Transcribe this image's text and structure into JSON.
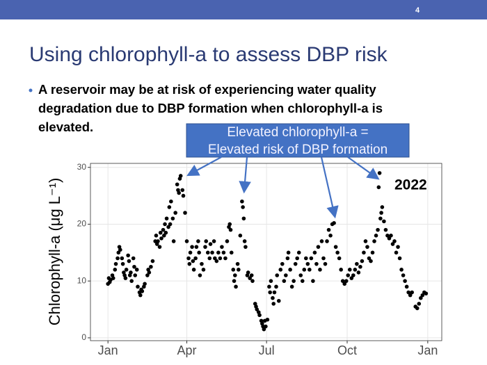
{
  "page_number": "4",
  "title": "Using chlorophyll-a to assess DBP risk",
  "bullet_lines": [
    "A reservoir may be at risk of experiencing water quality",
    "degradation due to DBP formation when chlorophyll-a is",
    "elevated."
  ],
  "callout_lines": [
    "Elevated chlorophyll-a =",
    "Elevated risk of DBP formation"
  ],
  "chart_data": {
    "type": "scatter",
    "y_label": "Chlorophyll-a (μg L⁻¹)",
    "annotation": "2022",
    "color": "#000000",
    "grid": true,
    "xlim": [
      -19,
      382
    ],
    "ylim": [
      -0.5,
      30.7
    ],
    "xticks": [
      {
        "value": 1,
        "label": "Jan"
      },
      {
        "value": 91,
        "label": "Apr"
      },
      {
        "value": 182,
        "label": "Jul"
      },
      {
        "value": 274,
        "label": "Oct"
      },
      {
        "value": 366,
        "label": "Jan"
      }
    ],
    "yticks": [
      0,
      10,
      20,
      30
    ],
    "x": [
      1,
      2,
      3,
      4,
      6,
      7,
      9,
      10,
      12,
      13,
      14,
      15,
      17,
      18,
      19,
      20,
      21,
      22,
      24,
      25,
      26,
      27,
      28,
      30,
      31,
      32,
      34,
      35,
      37,
      38,
      39,
      40,
      42,
      43,
      46,
      47,
      48,
      50,
      52,
      55,
      56,
      57,
      58,
      60,
      61,
      62,
      64,
      65,
      66,
      67,
      68,
      70,
      71,
      72,
      73,
      75,
      76,
      78,
      80,
      81,
      82,
      83,
      84,
      86,
      87,
      89,
      91,
      93,
      94,
      95,
      97,
      98,
      99,
      101,
      102,
      104,
      105,
      106,
      108,
      110,
      112,
      113,
      115,
      117,
      118,
      120,
      122,
      123,
      125,
      127,
      129,
      131,
      133,
      135,
      137,
      139,
      140,
      141,
      142,
      144,
      145,
      146,
      147,
      149,
      150,
      152,
      154,
      155,
      156,
      157,
      158,
      160,
      161,
      163,
      165,
      166,
      169,
      170,
      171,
      173,
      174,
      176,
      177,
      178,
      179,
      180,
      181,
      183,
      185,
      186,
      187,
      189,
      190,
      191,
      193,
      194,
      196,
      198,
      200,
      202,
      204,
      206,
      207,
      209,
      211,
      213,
      215,
      217,
      219,
      221,
      223,
      225,
      227,
      229,
      231,
      233,
      235,
      237,
      239,
      241,
      243,
      245,
      247,
      249,
      251,
      253,
      255,
      257,
      259,
      261,
      263,
      265,
      267,
      269,
      271,
      273,
      275,
      277,
      279,
      281,
      283,
      285,
      287,
      289,
      291,
      293,
      295,
      297,
      299,
      301,
      303,
      305,
      307,
      309,
      310,
      311,
      312,
      313,
      314,
      316,
      318,
      320,
      322,
      324,
      326,
      328,
      330,
      332,
      334,
      336,
      338,
      340,
      342,
      344,
      346,
      348,
      352,
      354,
      356,
      358,
      360,
      362,
      364
    ],
    "values": [
      9.5,
      10.5,
      9.8,
      10.2,
      11,
      10.5,
      12,
      13,
      14,
      15,
      16,
      15.5,
      14,
      13,
      11.5,
      11,
      10.5,
      12,
      14.5,
      13.5,
      11,
      11.5,
      10,
      14,
      12.5,
      11,
      12,
      9,
      8,
      7.5,
      8.5,
      8.2,
      9,
      9.5,
      11,
      12,
      11.5,
      12.5,
      13.5,
      17,
      18,
      16.5,
      17,
      16,
      18.5,
      17.5,
      19,
      18,
      20,
      18.5,
      21,
      19.5,
      23,
      20,
      24,
      21,
      17,
      22,
      27,
      26,
      25.5,
      28,
      28.5,
      26,
      25,
      22,
      17,
      14,
      13,
      15,
      16,
      13.5,
      12,
      14,
      16,
      17,
      15,
      11,
      13,
      12,
      16,
      17,
      15,
      14,
      16.5,
      15,
      17,
      14,
      13.5,
      15,
      14,
      16,
      15,
      14,
      17,
      19.5,
      20,
      19,
      15,
      12,
      10,
      11,
      9,
      13,
      12,
      18,
      24,
      23,
      21,
      17,
      16,
      11,
      11.5,
      10.5,
      11,
      10,
      6,
      5.5,
      5,
      4.5,
      4,
      3,
      2.5,
      2,
      1.5,
      3,
      2,
      3.2,
      9,
      8,
      10,
      7,
      6,
      8,
      9,
      11,
      6.5,
      12,
      13,
      10,
      11,
      14,
      15,
      12,
      9,
      10,
      13,
      14,
      15,
      11,
      10,
      12,
      14,
      13,
      12,
      14,
      10,
      15,
      13,
      16,
      12,
      17,
      14,
      13,
      17,
      19,
      18,
      20,
      20.2,
      16,
      15,
      14,
      12,
      10,
      9.5,
      10,
      11,
      12,
      10.5,
      11,
      12,
      13,
      11.5,
      12.5,
      13.5,
      15,
      17,
      16,
      14,
      13.5,
      15,
      17,
      18,
      19,
      26.5,
      29,
      21,
      22,
      23,
      20.5,
      19,
      18,
      17.5,
      18,
      16.5,
      17,
      15,
      16,
      14,
      12,
      11,
      10,
      9,
      8,
      7.5,
      8,
      5.5,
      5.2,
      6,
      7,
      7.5,
      8,
      7.8
    ]
  }
}
